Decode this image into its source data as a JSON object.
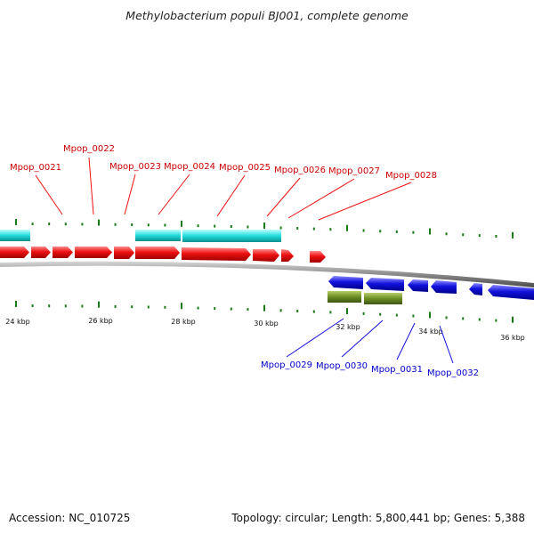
{
  "title": "Methylobacterium populi BJ001, complete genome",
  "footer": {
    "accession": "Accession: NC_010725",
    "info": "Topology: circular; Length: 5,800,441 bp; Genes: 5,388"
  },
  "colors": {
    "forward_gene": "#ee1111",
    "reverse_gene": "#1111dd",
    "forward_feature": "#22dddd",
    "reverse_feature": "#6b8e23",
    "tick": "#1a7a1a",
    "backbone": "#888888"
  },
  "axis": {
    "labels": [
      "24 kbp",
      "26 kbp",
      "28 kbp",
      "30 kbp",
      "32 kbp",
      "34 kbp",
      "36 kbp"
    ]
  },
  "genes_forward": [
    {
      "label": "Mpop_0021"
    },
    {
      "label": "Mpop_0022"
    },
    {
      "label": "Mpop_0023"
    },
    {
      "label": "Mpop_0024"
    },
    {
      "label": "Mpop_0025"
    },
    {
      "label": "Mpop_0026"
    },
    {
      "label": "Mpop_0027"
    },
    {
      "label": "Mpop_0028"
    }
  ],
  "genes_reverse": [
    {
      "label": "Mpop_0029"
    },
    {
      "label": "Mpop_0030"
    },
    {
      "label": "Mpop_0031"
    },
    {
      "label": "Mpop_0032"
    }
  ]
}
